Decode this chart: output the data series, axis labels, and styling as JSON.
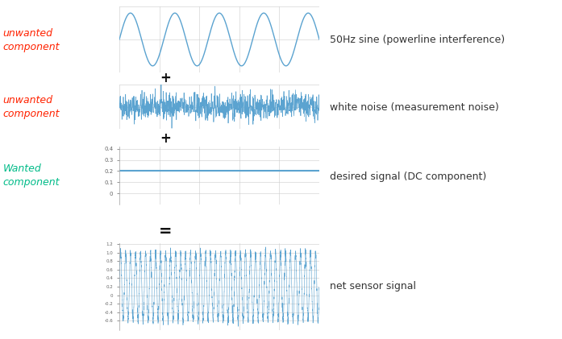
{
  "sine_color": "#5BA3D0",
  "noise_color": "#5BA3D0",
  "dc_color": "#5BA3D0",
  "net_color": "#5BA3D0",
  "unwanted_color": "#FF2200",
  "wanted_color": "#00BB88",
  "label1": "unwanted\ncomponent",
  "label2": "unwanted\ncomponent",
  "label3": "Wanted\ncomponent",
  "desc1": "50Hz sine (powerline interference)",
  "desc2": "white noise (measurement noise)",
  "desc3": "desired signal (DC component)",
  "desc4": "net sensor signal",
  "dc_value": 0.2,
  "sine_amplitude": 0.8,
  "noise_amplitude": 0.15,
  "net_sine_amplitude": 0.8,
  "bg_color": "#FFFFFF",
  "grid_color": "#CCCCCC",
  "font_size_label": 9,
  "font_size_desc": 9,
  "font_size_plus": 12,
  "font_size_eq": 14
}
